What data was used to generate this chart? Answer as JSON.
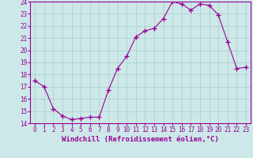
{
  "x": [
    0,
    1,
    2,
    3,
    4,
    5,
    6,
    7,
    8,
    9,
    10,
    11,
    12,
    13,
    14,
    15,
    16,
    17,
    18,
    19,
    20,
    21,
    22,
    23
  ],
  "y": [
    17.5,
    17.0,
    15.2,
    14.6,
    14.3,
    14.4,
    14.5,
    14.5,
    16.7,
    18.5,
    19.5,
    21.1,
    21.6,
    21.8,
    22.6,
    24.0,
    23.8,
    23.3,
    23.8,
    23.7,
    22.9,
    20.7,
    18.5,
    18.6
  ],
  "line_color": "#990099",
  "marker": "+",
  "marker_size": 4,
  "bg_color": "#cce8e8",
  "grid_color": "#aacccc",
  "xlabel": "Windchill (Refroidissement éolien,°C)",
  "xlabel_color": "#990099",
  "ylim": [
    14,
    24
  ],
  "xlim": [
    -0.5,
    23.5
  ],
  "yticks": [
    14,
    15,
    16,
    17,
    18,
    19,
    20,
    21,
    22,
    23,
    24
  ],
  "xticks": [
    0,
    1,
    2,
    3,
    4,
    5,
    6,
    7,
    8,
    9,
    10,
    11,
    12,
    13,
    14,
    15,
    16,
    17,
    18,
    19,
    20,
    21,
    22,
    23
  ],
  "tick_color": "#990099",
  "spine_color": "#990099",
  "tick_fontsize": 5.5,
  "xlabel_fontsize": 6.5
}
